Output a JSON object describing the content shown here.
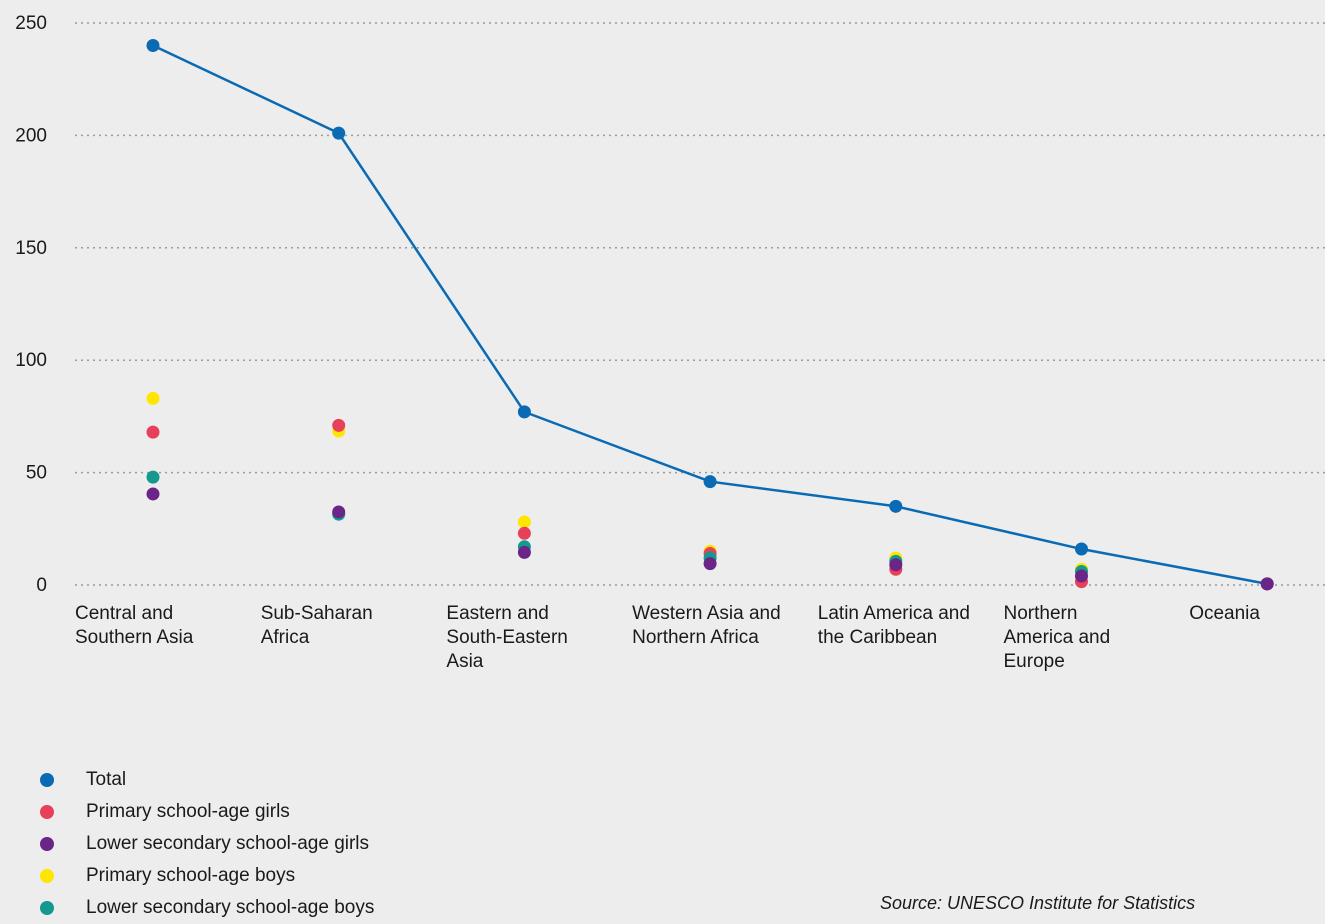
{
  "chart_data": {
    "type": "line",
    "ylim": [
      0,
      250
    ],
    "yticks": [
      0,
      50,
      100,
      150,
      200,
      250
    ],
    "grid": true,
    "legend_position": "bottom-left",
    "categories": [
      [
        "Central and",
        "Southern Asia"
      ],
      [
        "Sub-Saharan",
        "Africa"
      ],
      [
        "Eastern and",
        "South-Eastern",
        "Asia"
      ],
      [
        "Western Asia and",
        "Northern Africa"
      ],
      [
        "Latin America and",
        "the Caribbean"
      ],
      [
        "Northern",
        "America and",
        "Europe"
      ],
      [
        "Oceania"
      ]
    ],
    "series": [
      {
        "name": "Total",
        "color": "#0a6ab4",
        "style": "line",
        "values": [
          240,
          201,
          77,
          46,
          35,
          16,
          0.5
        ]
      },
      {
        "name": "Primary school-age girls",
        "color": "#e8405a",
        "style": "dot",
        "values": [
          68,
          71,
          23,
          14,
          7,
          1.5,
          null
        ]
      },
      {
        "name": "Lower secondary school-age girls",
        "color": "#6a2587",
        "style": "dot",
        "values": [
          40.5,
          32.5,
          14.5,
          9.5,
          9,
          4,
          0.5
        ]
      },
      {
        "name": "Primary school-age boys",
        "color": "#ffe500",
        "style": "dot",
        "values": [
          83,
          68.5,
          28,
          15,
          12,
          7,
          null
        ]
      },
      {
        "name": "Lower secondary school-age boys",
        "color": "#13998f",
        "style": "dot",
        "values": [
          48,
          31.5,
          17,
          12,
          10.5,
          6,
          null
        ]
      }
    ]
  },
  "source": "Source: UNESCO Institute for Statistics"
}
